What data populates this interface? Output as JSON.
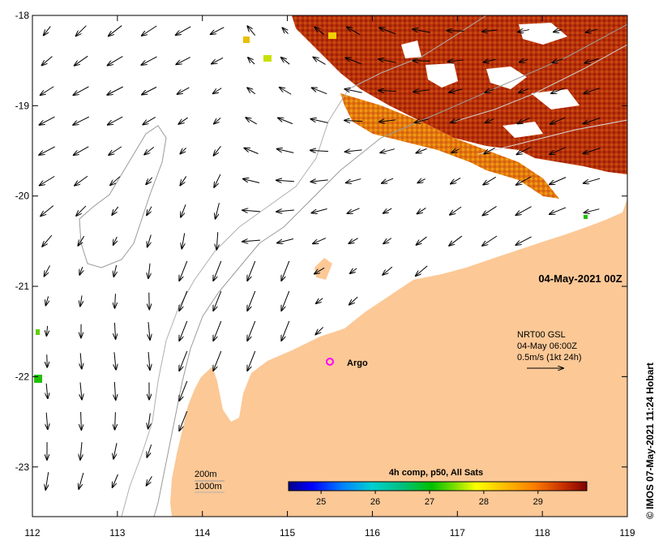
{
  "map": {
    "timestamp": "04-May-2021 00Z",
    "credit": "© IMOS 07-May-2021 11:24 Hobart",
    "lon_ticks": [
      "112",
      "113",
      "114",
      "115",
      "116",
      "117",
      "118",
      "119"
    ],
    "lat_ticks": [
      "-18",
      "-19",
      "-20",
      "-21",
      "-22",
      "-23"
    ],
    "lon_range": [
      112,
      119
    ],
    "lat_range": [
      -23.55,
      -18
    ],
    "land_color": "#fcc896",
    "ocean_color": "#ffffff"
  },
  "current_legend": {
    "line1": "NRT00 GSL",
    "line2": "04-May 06:00Z",
    "line3": "0.5m/s (1kt 24h)"
  },
  "argo": {
    "label": "Argo",
    "lon": 115.48,
    "lat": -21.82,
    "color": "#ff00ff"
  },
  "isobaths": {
    "label_200": "200m",
    "label_1000": "1000m"
  },
  "colorbar": {
    "title": "4h comp, p50, All Sats",
    "ticks": [
      "25",
      "26",
      "27",
      "28",
      "29"
    ],
    "range": [
      24.4,
      29.9
    ],
    "colors": [
      "#00008b",
      "#0000ff",
      "#0080ff",
      "#00d0d0",
      "#00c080",
      "#00c000",
      "#80e000",
      "#ffff00",
      "#ffc000",
      "#ff8000",
      "#e04000",
      "#b00000",
      "#800000"
    ]
  }
}
